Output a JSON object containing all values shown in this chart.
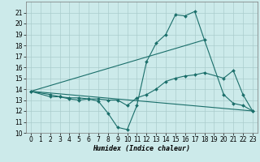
{
  "xlabel": "Humidex (Indice chaleur)",
  "bg_color": "#cceaea",
  "grid_color": "#aacccc",
  "line_color": "#1a6e6a",
  "xlim": [
    -0.5,
    23.5
  ],
  "ylim": [
    10,
    22
  ],
  "xticks": [
    0,
    1,
    2,
    3,
    4,
    5,
    6,
    7,
    8,
    9,
    10,
    11,
    12,
    13,
    14,
    15,
    16,
    17,
    18,
    19,
    20,
    21,
    22,
    23
  ],
  "yticks": [
    10,
    11,
    12,
    13,
    14,
    15,
    16,
    17,
    18,
    19,
    20,
    21
  ],
  "line1_x": [
    0,
    2,
    3,
    4,
    5,
    6,
    7,
    8,
    9,
    10,
    11,
    12,
    13,
    14,
    15,
    16,
    17,
    18,
    20,
    21,
    22,
    23
  ],
  "line1_y": [
    13.8,
    13.5,
    13.3,
    13.2,
    13.2,
    13.1,
    12.9,
    11.8,
    10.5,
    10.3,
    12.5,
    16.5,
    18.2,
    19.0,
    20.8,
    20.7,
    21.1,
    18.5,
    13.5,
    12.7,
    12.5,
    12.0
  ],
  "line2_x": [
    0,
    2,
    3,
    4,
    5,
    6,
    7,
    8,
    9,
    10,
    11,
    12,
    13,
    14,
    15,
    16,
    17,
    18,
    20,
    21,
    22,
    23
  ],
  "line2_y": [
    13.8,
    13.3,
    13.3,
    13.1,
    13.0,
    13.1,
    13.1,
    13.0,
    13.0,
    12.5,
    13.2,
    13.5,
    14.0,
    14.7,
    15.0,
    15.2,
    15.3,
    15.5,
    15.0,
    15.7,
    13.5,
    12.0
  ],
  "line3_x": [
    0,
    18
  ],
  "line3_y": [
    13.8,
    18.5
  ],
  "line4_x": [
    0,
    23
  ],
  "line4_y": [
    13.8,
    12.0
  ],
  "markersize": 2.0,
  "linewidth": 0.8,
  "tick_fontsize": 5.5
}
